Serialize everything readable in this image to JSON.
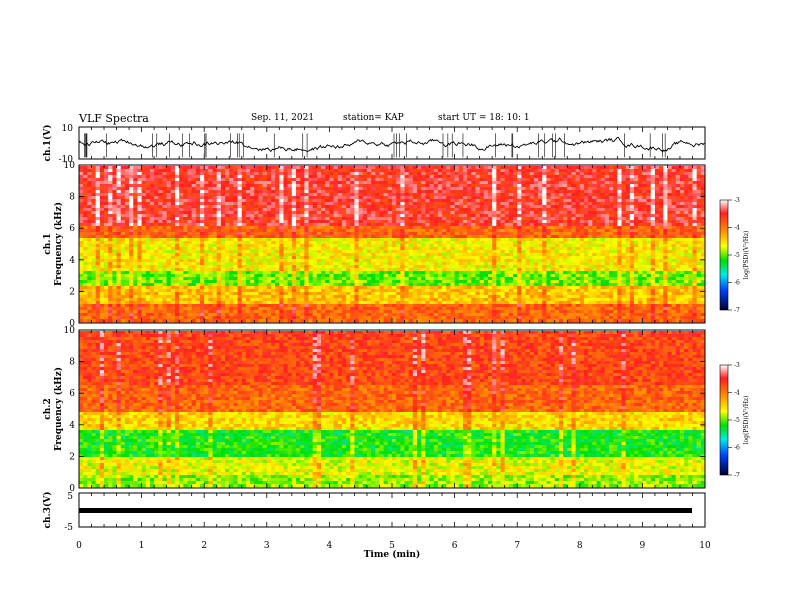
{
  "header": {
    "title": "VLF Spectra",
    "date": "Sep. 11, 2021",
    "station": "station= KAP",
    "start": "start  UT  =   18: 10: 1"
  },
  "chart_data": [
    {
      "type": "line",
      "panel": "ch1-waveform",
      "ylabel": "ch.1(V)",
      "yticks": [
        "10",
        "-10"
      ],
      "ylim": [
        -10,
        10
      ],
      "xlim": [
        0,
        10
      ],
      "series": [
        {
          "values_description_free": true,
          "y_range_observed": [
            -9,
            6
          ]
        }
      ]
    },
    {
      "type": "heatmap",
      "panel": "ch1-spectrogram",
      "ylabel": "ch.1\nFrequency  (kHz)",
      "ylabel_line1": "ch.1",
      "ylabel_line2": "Frequency  (kHz)",
      "yticks": [
        "0",
        "2",
        "4",
        "6",
        "8",
        "10"
      ],
      "ylim": [
        0,
        10
      ],
      "xlim": [
        0,
        9.83
      ],
      "colorbar": {
        "label": "log(PSD)(V²/Hz)",
        "ticks": [
          "-3",
          "-4",
          "-5",
          "-6",
          "-7"
        ],
        "range": [
          -7,
          -3
        ]
      }
    },
    {
      "type": "heatmap",
      "panel": "ch2-spectrogram",
      "ylabel_line1": "ch.2",
      "ylabel_line2": "Frequency  (kHz)",
      "yticks": [
        "0",
        "2",
        "4",
        "6",
        "8",
        "10"
      ],
      "ylim": [
        0,
        10
      ],
      "xlim": [
        0,
        9.83
      ],
      "colorbar": {
        "label": "log(PSD)(V²/Hz)",
        "ticks": [
          "-3",
          "-4",
          "-5",
          "-6",
          "-7"
        ],
        "range": [
          -7,
          -3
        ]
      }
    },
    {
      "type": "line",
      "panel": "ch3-waveform",
      "ylabel": "ch.3(V)",
      "yticks": [
        "5",
        "-5"
      ],
      "ylim": [
        -5,
        5
      ],
      "xlim": [
        0,
        10
      ],
      "xlabel": "Time  (min)",
      "xticks": [
        "0",
        "1",
        "2",
        "3",
        "4",
        "5",
        "6",
        "7",
        "8",
        "9",
        "10"
      ]
    }
  ],
  "colors": {
    "axis": "#000000",
    "trace": "#000000",
    "background": "#ffffff"
  }
}
